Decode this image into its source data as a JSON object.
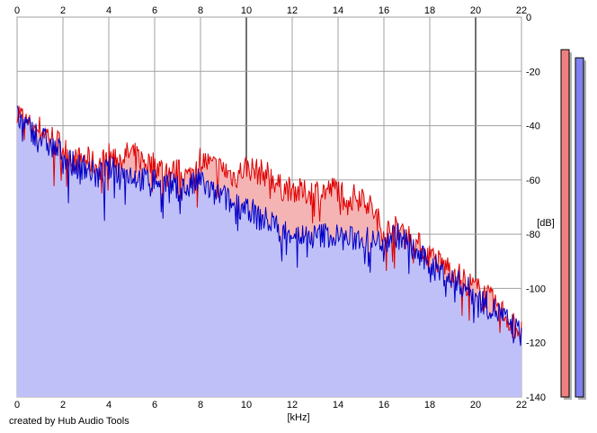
{
  "footer": "created by Hub Audio Tools",
  "chart_data": {
    "type": "area",
    "xlabel": "[kHz]",
    "ylabel": "[dB]",
    "x_range": [
      0,
      22
    ],
    "y_range": [
      -140,
      0
    ],
    "x_ticks": [
      "0",
      "2",
      "4",
      "6",
      "8",
      "10",
      "12",
      "14",
      "16",
      "18",
      "20",
      "22"
    ],
    "y_ticks": [
      "0",
      "-20",
      "-40",
      "-60",
      "-80",
      "-100",
      "-120",
      "-140"
    ],
    "grid": true,
    "x_unit": "kHz",
    "y_unit": "dB",
    "x": [
      0,
      0.5,
      1,
      1.5,
      2,
      2.5,
      3,
      3.5,
      4,
      4.5,
      5,
      5.5,
      6,
      6.5,
      7,
      7.5,
      8,
      8.5,
      9,
      9.5,
      10,
      10.5,
      11,
      11.5,
      12,
      12.5,
      13,
      13.5,
      14,
      14.5,
      15,
      15.5,
      16,
      16.5,
      17,
      17.5,
      18,
      18.5,
      19,
      19.5,
      20,
      20.5,
      21,
      21.5,
      22
    ],
    "series": [
      {
        "color": "#e00000",
        "fill": "#f4b4b4",
        "values": [
          -34,
          -40,
          -41,
          -44,
          -48,
          -53,
          -52,
          -55,
          -51,
          -52,
          -50,
          -53,
          -54,
          -57,
          -57,
          -59,
          -52,
          -55,
          -56,
          -59,
          -55,
          -57,
          -58,
          -63,
          -63,
          -65,
          -64,
          -64,
          -63,
          -67,
          -65,
          -71,
          -79,
          -78,
          -80,
          -84,
          -88,
          -91,
          -93,
          -97,
          -100,
          -103,
          -107,
          -112,
          -116
        ]
      },
      {
        "color": "#0000c8",
        "fill": "#c0c0f8",
        "values": [
          -37,
          -41,
          -44,
          -48,
          -50,
          -55,
          -55,
          -59,
          -56,
          -57,
          -58,
          -60,
          -60,
          -61,
          -63,
          -63,
          -60,
          -65,
          -66,
          -70,
          -69,
          -74,
          -75,
          -79,
          -79,
          -81,
          -81,
          -80,
          -81,
          -82,
          -81,
          -83,
          -82,
          -80,
          -83,
          -88,
          -91,
          -94,
          -97,
          -99,
          -103,
          -106,
          -109,
          -113,
          -117
        ]
      }
    ],
    "meters": [
      {
        "color": "#f08080",
        "value": -12
      },
      {
        "color": "#8080f0",
        "value": -15
      }
    ]
  }
}
